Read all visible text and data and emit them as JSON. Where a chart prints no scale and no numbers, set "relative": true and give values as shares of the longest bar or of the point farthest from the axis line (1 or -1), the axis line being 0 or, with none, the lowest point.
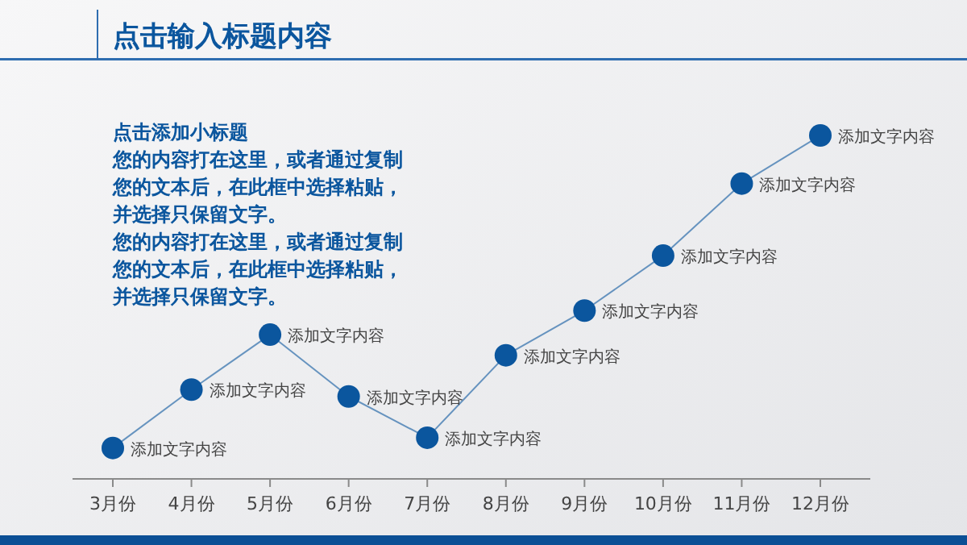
{
  "chart_data": {
    "type": "line",
    "title": "点击输入标题内容",
    "subtitle": "点击添加小标题",
    "categories": [
      "3月份",
      "4月份",
      "5月份",
      "6月份",
      "7月份",
      "8月份",
      "9月份",
      "10月份",
      "11月份",
      "12月份"
    ],
    "relative": true,
    "marker": "circle",
    "series": [
      {
        "color": "#0b569e",
        "values": [
          0.09,
          0.26,
          0.42,
          0.24,
          0.12,
          0.36,
          0.49,
          0.65,
          0.86,
          1
        ]
      }
    ],
    "annotations": [
      "您的内容打在这里，或者通过复制",
      "您的文本后，在此框中选择粘贴，",
      "并选择只保留文字。",
      "您的内容打在这里，或者通过复制",
      "您的文本后，在此框中选择粘贴，",
      "并选择只保留文字。",
      {
        "text": "添加文字内容",
        "x": "3月份",
        "y": 0.09
      },
      {
        "text": "添加文字内容",
        "x": "4月份",
        "y": 0.26
      },
      {
        "text": "添加文字内容",
        "x": "5月份",
        "y": 0.42
      },
      {
        "text": "添加文字内容",
        "x": "6月份",
        "y": 0.24
      },
      {
        "text": "添加文字内容",
        "x": "7月份",
        "y": 0.12
      },
      {
        "text": "添加文字内容",
        "x": "8月份",
        "y": 0.36
      },
      {
        "text": "添加文字内容",
        "x": "9月份",
        "y": 0.49
      },
      {
        "text": "添加文字内容",
        "x": "10月份",
        "y": 0.65
      },
      {
        "text": "添加文字内容",
        "x": "11月份",
        "y": 0.86
      },
      {
        "text": "添加文字内容",
        "x": "12月份",
        "y": 1
      }
    ]
  }
}
